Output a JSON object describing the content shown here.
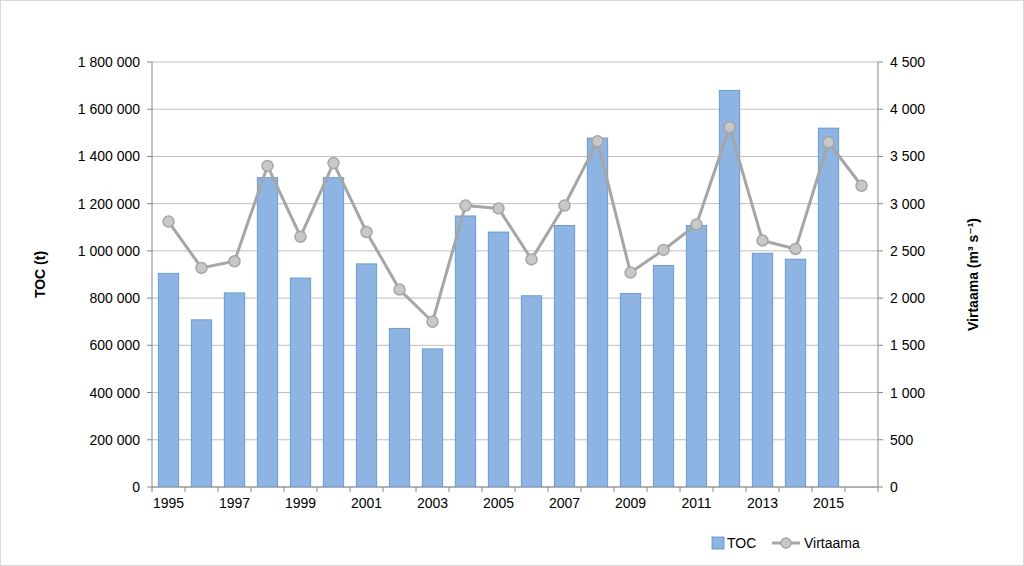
{
  "chart_data": {
    "type": "bar",
    "categories": [
      "1995",
      null,
      "1997",
      null,
      "1999",
      null,
      "2001",
      null,
      "2003",
      null,
      "2005",
      null,
      "2007",
      null,
      "2009",
      null,
      "2011",
      null,
      "2013",
      null,
      "2015",
      null
    ],
    "y_label": "TOC (t)",
    "y2_label": "Virtaama (m³ s⁻¹)",
    "ylim": [
      0,
      1800000
    ],
    "yticks": [
      0,
      {
        "value": 200000,
        "label": "200 000"
      },
      {
        "value": 400000,
        "label": "400 000"
      },
      {
        "value": 600000,
        "label": "600 000"
      },
      {
        "value": 800000,
        "label": "800 000"
      },
      {
        "value": 1000000,
        "label": "1 000 000"
      },
      {
        "value": 1200000,
        "label": "1 200 000"
      },
      {
        "value": 1400000,
        "label": "1 400 000"
      },
      {
        "value": 1600000,
        "label": "1 600 000"
      },
      {
        "value": 1800000,
        "label": "1 800 000"
      }
    ],
    "y2lim": [
      0,
      4500
    ],
    "y2ticks": [
      0,
      500,
      {
        "value": 1000,
        "label": "1 000"
      },
      {
        "value": 1500,
        "label": "1 500"
      },
      {
        "value": 2000,
        "label": "2 000"
      },
      {
        "value": 2500,
        "label": "2 500"
      },
      {
        "value": 3000,
        "label": "3 000"
      },
      {
        "value": 3500,
        "label": "3 500"
      },
      {
        "value": 4000,
        "label": "4 000"
      },
      {
        "value": 4500,
        "label": "4 500"
      }
    ],
    "grid": true,
    "legend": "bottom-right",
    "series": [
      {
        "name": "TOC",
        "type": "bar",
        "color": "#8db4e2",
        "values": [
          905000,
          708000,
          822000,
          1310000,
          885000,
          1310000,
          945000,
          672000,
          585000,
          1148000,
          1080000,
          810000,
          1108000,
          1478000,
          820000,
          938000,
          1108000,
          1680000,
          990000,
          965000,
          1520000,
          null
        ]
      },
      {
        "name": "Virtaama",
        "type": "line",
        "axis": "y2",
        "color": "#a6a6a6",
        "marker": "circle",
        "values": [
          2810,
          2320,
          2390,
          3400,
          2650,
          3430,
          2700,
          2090,
          1750,
          2980,
          2950,
          2410,
          2980,
          3660,
          2270,
          2510,
          2780,
          3810,
          2610,
          2520,
          3650,
          3190
        ]
      }
    ]
  }
}
